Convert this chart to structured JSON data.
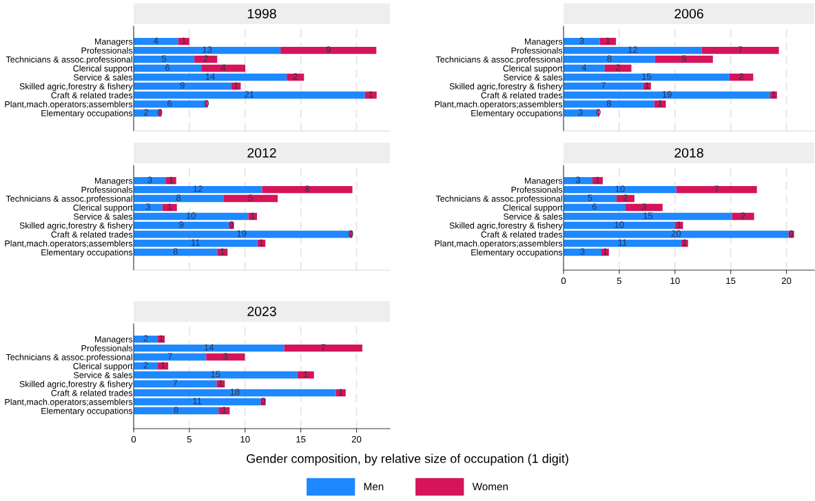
{
  "chart_data": [
    {
      "type": "bar",
      "orientation": "horizontal",
      "stacked": true,
      "title": "1998",
      "categories": [
        "Managers",
        "Professionals",
        "Technicians & assoc.professional",
        "Clerical support",
        "Service & sales",
        "Skilled agric,forestry & fishery",
        "Craft & related trades",
        "Plant,mach.operators;assemblers",
        "Elementary occupations"
      ],
      "xlim": [
        0,
        23
      ],
      "xticks": [
        0,
        5,
        10,
        15,
        20
      ],
      "grid": "x",
      "tick_labels": "y",
      "legend": "bottom",
      "series": [
        {
          "name": "Men",
          "color": "#1e88ff",
          "values": [
            4.0,
            13.18,
            5.45,
            6.07,
            13.74,
            8.74,
            20.76,
            6.45,
            2.23
          ],
          "value_labels": [
            "4",
            "13",
            "5",
            "6",
            "14",
            "9",
            "21",
            "6",
            "2"
          ]
        },
        {
          "name": "Women",
          "color": "#d5145a",
          "values": [
            1.0,
            8.6,
            2.05,
            3.95,
            1.55,
            0.87,
            1.05,
            0.2,
            0.27
          ],
          "value_labels": [
            "1",
            "9",
            "2",
            "4",
            "2",
            "1",
            "1",
            "0",
            "0"
          ]
        }
      ]
    },
    {
      "type": "bar",
      "orientation": "horizontal",
      "stacked": true,
      "title": "2006",
      "categories": [
        "Managers",
        "Professionals",
        "Technicians & assoc.professional",
        "Clerical support",
        "Service & sales",
        "Skilled agric,forestry & fishery",
        "Craft & related trades",
        "Plant,mach.operators;assemblers",
        "Elementary occupations"
      ],
      "xlim": [
        0,
        22.5
      ],
      "xticks": [
        0,
        5,
        10,
        15,
        20
      ],
      "grid": "x",
      "tick_labels": "y",
      "series": [
        {
          "color": "#1e88ff",
          "values": [
            3.25,
            12.41,
            8.21,
            3.7,
            14.88,
            7.16,
            18.55,
            8.15,
            3.05
          ],
          "value_labels": [
            "3",
            "12",
            "8",
            "4",
            "15",
            "7",
            "19",
            "8",
            "3"
          ]
        },
        {
          "color": "#d5145a",
          "values": [
            1.45,
            6.91,
            5.19,
            2.39,
            2.14,
            0.68,
            0.6,
            1.03,
            0.16
          ],
          "value_labels": [
            "1",
            "7",
            "5",
            "2",
            "2",
            "1",
            "1",
            "1",
            "0"
          ]
        }
      ]
    },
    {
      "type": "bar",
      "orientation": "horizontal",
      "stacked": true,
      "title": "2012",
      "categories": [
        "Managers",
        "Professionals",
        "Technicians & assoc.professional",
        "Clerical support",
        "Service & sales",
        "Skilled agric,forestry & fishery",
        "Craft & related trades",
        "Plant,mach.operators;assemblers",
        "Elementary occupations"
      ],
      "xlim": [
        0,
        23
      ],
      "xticks": [
        0,
        5,
        10,
        15,
        20
      ],
      "grid": "x",
      "tick_labels": "y",
      "series": [
        {
          "color": "#1e88ff",
          "values": [
            2.91,
            11.53,
            8.06,
            2.58,
            10.29,
            8.55,
            19.38,
            11.1,
            7.5
          ],
          "value_labels": [
            "3",
            "12",
            "8",
            "3",
            "10",
            "9",
            "19",
            "11",
            "8"
          ]
        },
        {
          "color": "#d5145a",
          "values": [
            0.91,
            8.1,
            4.87,
            1.3,
            0.78,
            0.45,
            0.25,
            0.72,
            0.93
          ],
          "value_labels": [
            "1",
            "8",
            "5",
            "1",
            "1",
            "0",
            "0",
            "1",
            "1"
          ]
        }
      ]
    },
    {
      "type": "bar",
      "orientation": "horizontal",
      "stacked": true,
      "title": "2018",
      "categories": [
        "Managers",
        "Professionals",
        "Technicians & assoc.professional",
        "Clerical support",
        "Service & sales",
        "Skilled agric,forestry & fishery",
        "Craft & related trades",
        "Plant,mach.operators;assemblers",
        "Elementary occupations"
      ],
      "xlim": [
        0,
        22.5
      ],
      "xticks": [
        0,
        5,
        10,
        15,
        20
      ],
      "grid": "x",
      "series": [
        {
          "color": "#1e88ff",
          "values": [
            2.59,
            10.12,
            4.75,
            5.56,
            15.12,
            10.0,
            20.19,
            10.56,
            3.4
          ],
          "value_labels": [
            "3",
            "10",
            "5",
            "6",
            "15",
            "10",
            "20",
            "11",
            "3"
          ]
        },
        {
          "color": "#d5145a",
          "values": [
            0.93,
            7.23,
            1.61,
            3.33,
            1.98,
            0.72,
            0.49,
            0.61,
            0.67
          ],
          "value_labels": [
            "1",
            "7",
            "2",
            "3",
            "2",
            "1",
            "0",
            "1",
            "1"
          ]
        }
      ]
    },
    {
      "type": "bar",
      "orientation": "horizontal",
      "stacked": true,
      "title": "2023",
      "xlabel": "Gender composition, by relative size of occupation (1 digit)",
      "categories": [
        "Managers",
        "Professionals",
        "Technicians & assoc.professional",
        "Clerical support",
        "Service & sales",
        "Skilled agric,forestry & fishery",
        "Craft & related trades",
        "Plant,mach.operators;assemblers",
        "Elementary occupations"
      ],
      "xlim": [
        0,
        23
      ],
      "xticks": [
        0,
        5,
        10,
        15,
        20
      ],
      "grid": "x",
      "series": [
        {
          "color": "#1e88ff",
          "values": [
            2.17,
            13.51,
            6.51,
            2.17,
            14.69,
            7.44,
            18.16,
            11.4,
            7.62
          ],
          "value_labels": [
            "2",
            "14",
            "7",
            "2",
            "15",
            "7",
            "18",
            "11",
            "8"
          ]
        },
        {
          "color": "#d5145a",
          "values": [
            0.62,
            7.01,
            3.47,
            0.93,
            1.49,
            0.74,
            0.87,
            0.45,
            1.0
          ],
          "value_labels": [
            "1",
            "7",
            "3",
            "1",
            "1",
            "1",
            "1",
            "0",
            "1"
          ]
        }
      ]
    }
  ]
}
